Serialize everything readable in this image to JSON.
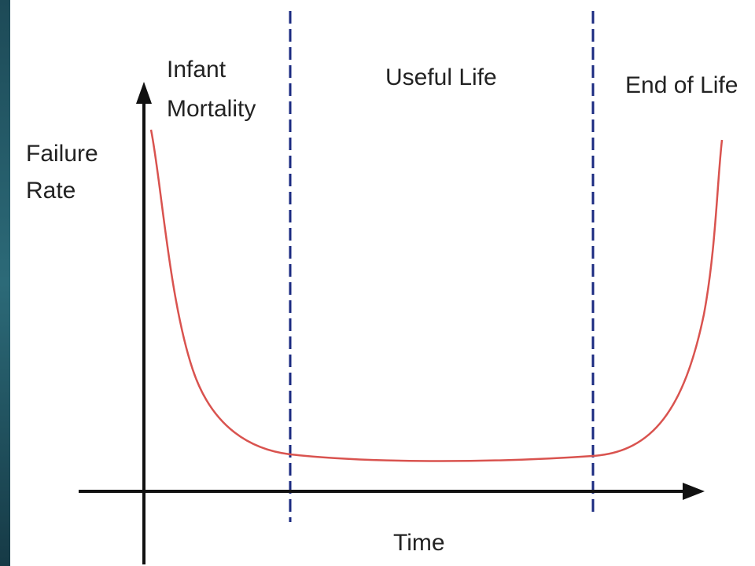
{
  "axes": {
    "y_label": [
      "Failure",
      "Rate"
    ],
    "x_label": "Time"
  },
  "regions": [
    {
      "label": [
        "Infant",
        "Mortality"
      ]
    },
    {
      "label": [
        "Useful Life"
      ]
    },
    {
      "label": [
        "End of Life"
      ]
    }
  ]
}
